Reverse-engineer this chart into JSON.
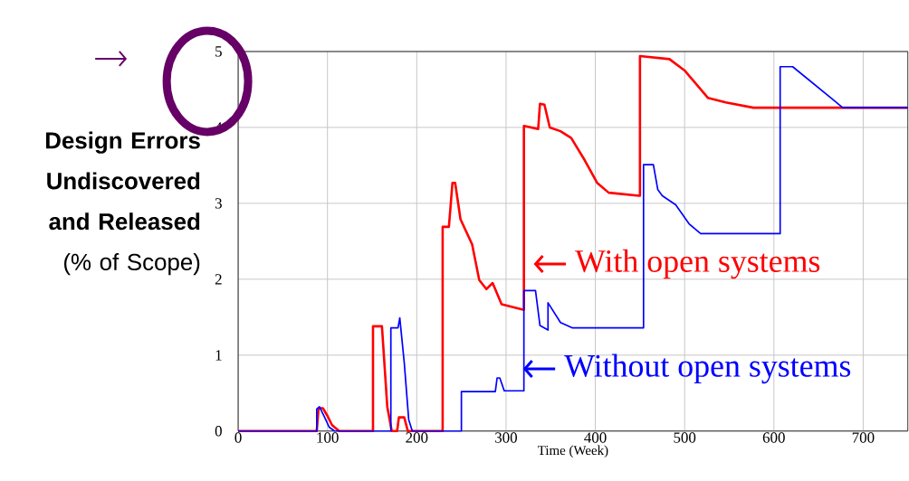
{
  "chart_data": {
    "type": "line",
    "ylabel": "**Design Errors Undiscovered and Released** (% of Scope)",
    "xlabel": "Time (Week)",
    "xlim": [
      0,
      750
    ],
    "xticks": [
      0,
      100,
      200,
      300,
      400,
      500,
      600,
      700
    ],
    "ylim": [
      0,
      5
    ],
    "yticks": [
      0,
      1,
      2,
      3,
      4,
      5
    ],
    "grid": true,
    "legend": "right",
    "series": [
      {
        "name": "With open systems",
        "color": "#ff0000",
        "x": [
          0,
          88,
          90,
          95,
          100,
          105,
          113,
          151,
          151,
          161,
          167,
          172,
          178,
          180,
          186,
          190,
          229,
          229,
          236,
          240,
          243,
          249,
          262,
          270,
          278,
          285,
          295,
          319,
          320,
          320,
          336,
          338,
          343,
          349,
          361,
          373,
          388,
          402,
          415,
          449,
          450,
          450,
          483,
          500,
          526,
          546,
          577,
          750
        ],
        "values": [
          0,
          0,
          0.3,
          0.3,
          0.2,
          0.08,
          0,
          0,
          1.38,
          1.38,
          0.32,
          0,
          0,
          0.18,
          0.18,
          0,
          0,
          2.69,
          2.69,
          3.27,
          3.27,
          2.79,
          2.46,
          1.99,
          1.87,
          1.95,
          1.67,
          1.6,
          1.6,
          4.02,
          3.98,
          4.31,
          4.3,
          4.0,
          3.95,
          3.86,
          3.57,
          3.27,
          3.14,
          3.1,
          3.1,
          4.94,
          4.9,
          4.75,
          4.39,
          4.33,
          4.26,
          4.26
        ]
      },
      {
        "name": "Without open systems",
        "color": "#0000ff",
        "x": [
          0,
          88,
          88,
          91,
          96,
          102,
          108,
          171,
          171,
          179,
          181,
          186,
          191,
          195,
          250,
          250,
          288,
          290,
          293,
          298,
          320,
          320,
          333,
          338,
          347,
          347,
          361,
          374,
          454,
          454,
          465,
          470,
          475,
          490,
          505,
          518,
          607,
          607,
          621,
          668,
          677,
          750
        ],
        "values": [
          0,
          0,
          0.29,
          0.32,
          0.2,
          0.05,
          0,
          0,
          1.36,
          1.36,
          1.49,
          0.9,
          0.15,
          0,
          0,
          0.52,
          0.52,
          0.7,
          0.7,
          0.53,
          0.53,
          1.85,
          1.85,
          1.39,
          1.33,
          1.69,
          1.43,
          1.36,
          1.36,
          3.51,
          3.51,
          3.18,
          3.1,
          2.98,
          2.73,
          2.6,
          2.6,
          4.8,
          4.8,
          4.35,
          4.26,
          4.26
        ]
      }
    ]
  }
}
